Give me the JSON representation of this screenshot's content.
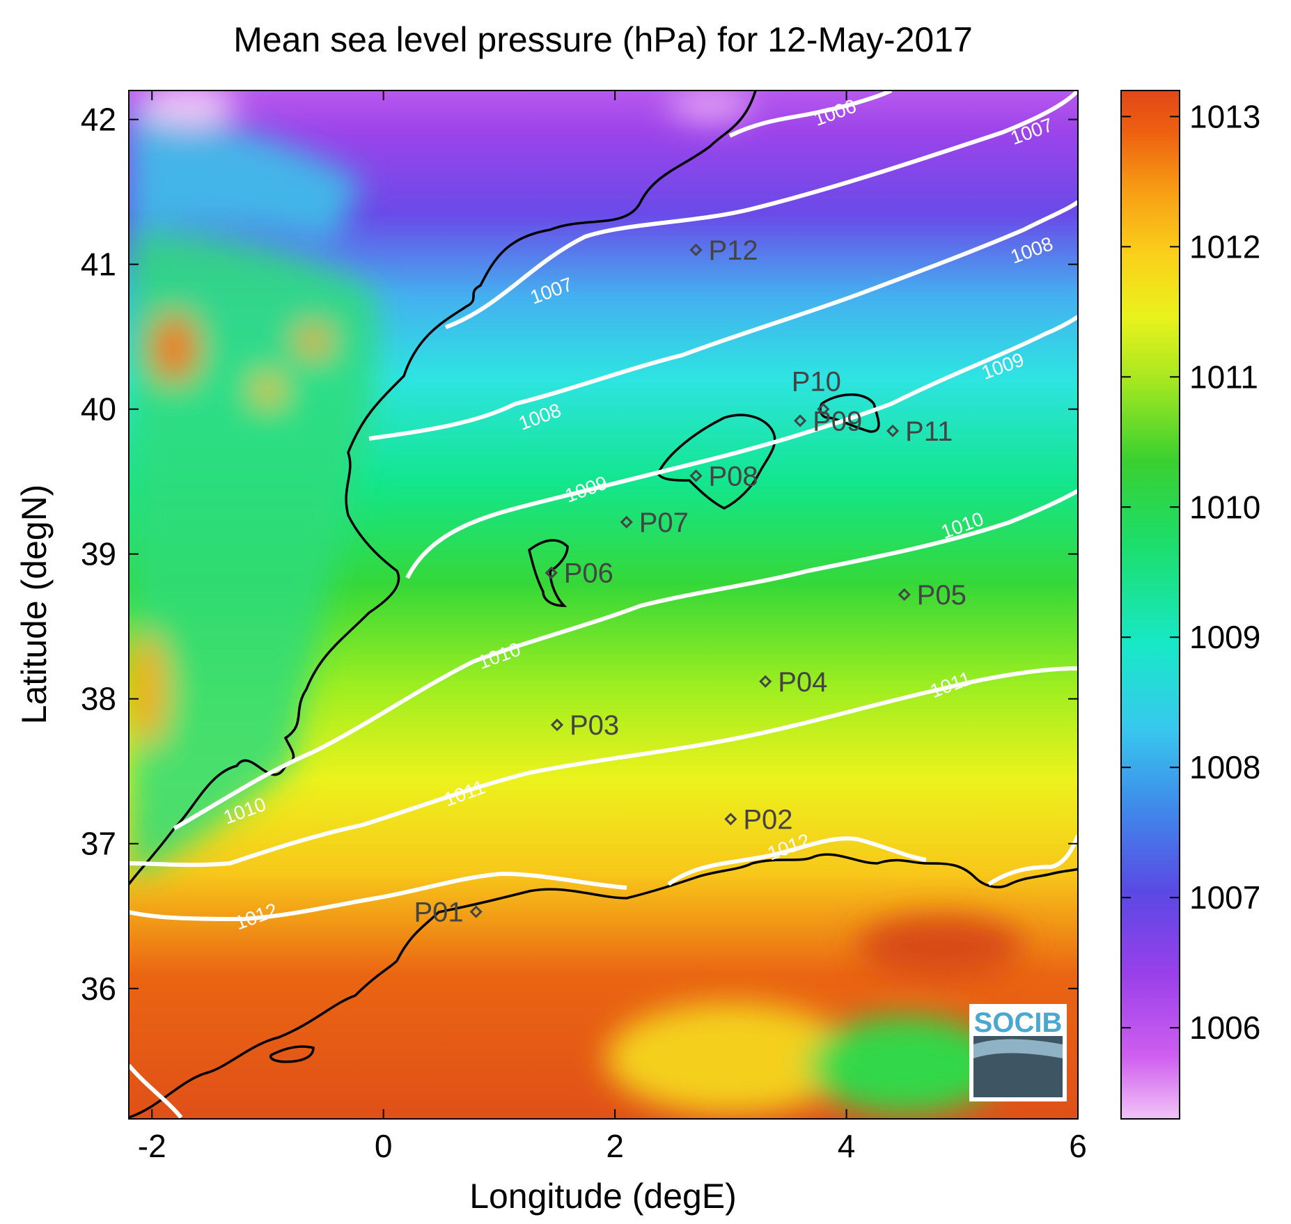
{
  "chart_data": {
    "type": "heatmap",
    "title": "Mean sea level pressure (hPa) for 12-May-2017",
    "xlabel": "Longitude (degE)",
    "ylabel": "Latitude (degN)",
    "xlim": [
      -2.2,
      6.0
    ],
    "ylim": [
      35.1,
      42.2
    ],
    "x_ticks": [
      -2,
      0,
      2,
      4,
      6
    ],
    "y_ticks": [
      36,
      37,
      38,
      39,
      40,
      41,
      42
    ],
    "colorbar": {
      "ticks": [
        1006,
        1007,
        1008,
        1009,
        1010,
        1011,
        1012,
        1013
      ],
      "range": [
        1005.3,
        1013.2
      ]
    },
    "contour_labels": [
      {
        "text": "1006",
        "lon": 3.9,
        "lat": 42.05
      },
      {
        "text": "1007",
        "lon": 5.6,
        "lat": 41.92
      },
      {
        "text": "1007",
        "lon": 1.45,
        "lat": 40.82
      },
      {
        "text": "1008",
        "lon": 5.6,
        "lat": 41.1
      },
      {
        "text": "1008",
        "lon": 1.35,
        "lat": 39.95
      },
      {
        "text": "1009",
        "lon": 5.35,
        "lat": 40.3
      },
      {
        "text": "1009",
        "lon": 1.75,
        "lat": 39.45
      },
      {
        "text": "1010",
        "lon": 5.0,
        "lat": 39.2
      },
      {
        "text": "1010",
        "lon": 1.0,
        "lat": 38.3
      },
      {
        "text": "1010",
        "lon": -1.2,
        "lat": 37.23
      },
      {
        "text": "1011",
        "lon": 4.9,
        "lat": 38.1
      },
      {
        "text": "1011",
        "lon": 0.7,
        "lat": 37.35
      },
      {
        "text": "1012",
        "lon": 3.5,
        "lat": 36.98
      },
      {
        "text": "1012",
        "lon": -1.1,
        "lat": 36.5
      }
    ],
    "stations": [
      {
        "name": "P01",
        "lon": 0.8,
        "lat": 36.53
      },
      {
        "name": "P02",
        "lon": 3.0,
        "lat": 37.17
      },
      {
        "name": "P03",
        "lon": 1.5,
        "lat": 37.82
      },
      {
        "name": "P04",
        "lon": 3.3,
        "lat": 38.12
      },
      {
        "name": "P05",
        "lon": 4.5,
        "lat": 38.72
      },
      {
        "name": "P06",
        "lon": 1.45,
        "lat": 38.87
      },
      {
        "name": "P07",
        "lon": 2.1,
        "lat": 39.22
      },
      {
        "name": "P08",
        "lon": 2.7,
        "lat": 39.54
      },
      {
        "name": "P09",
        "lon": 3.6,
        "lat": 39.92
      },
      {
        "name": "P10",
        "lon": 3.8,
        "lat": 40.0
      },
      {
        "name": "P11",
        "lon": 4.4,
        "lat": 39.85
      },
      {
        "name": "P12",
        "lon": 2.7,
        "lat": 41.1
      }
    ]
  },
  "logo": {
    "text": "SOCIB"
  },
  "colors": {
    "contour": "#ffffff",
    "coast": "#000000",
    "station_marker": "#444444"
  }
}
